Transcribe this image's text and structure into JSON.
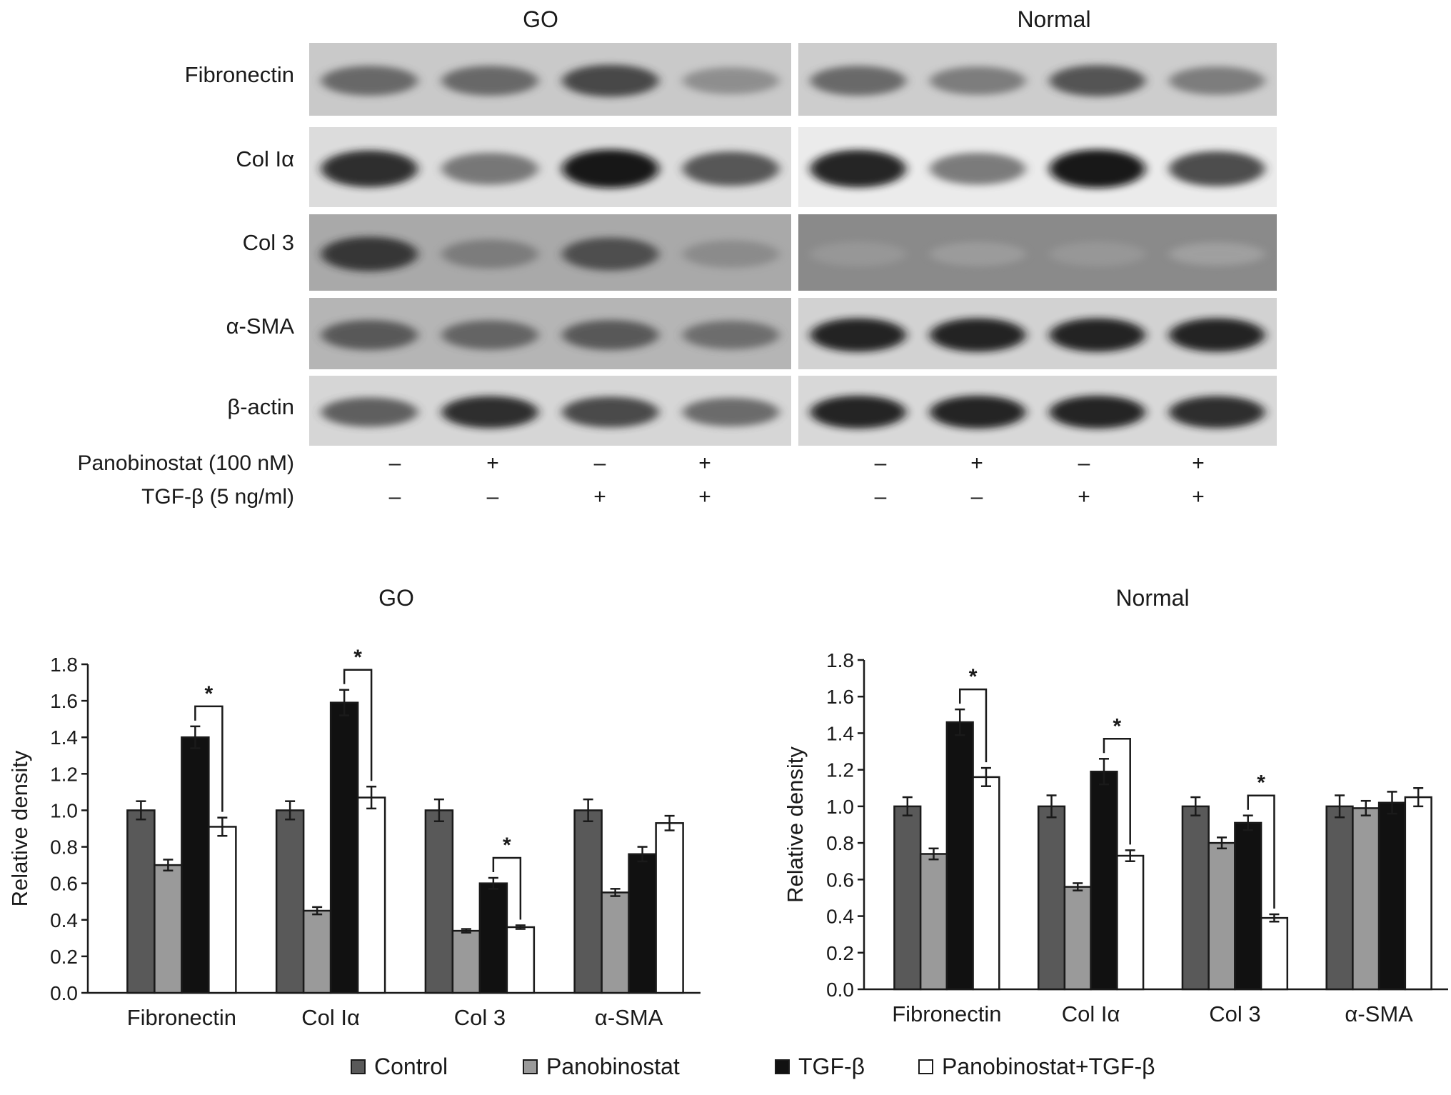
{
  "blot": {
    "groups": [
      "GO",
      "Normal"
    ],
    "rows": [
      "Fibronectin",
      "Col Iα",
      "Col 3",
      "α-SMA",
      "β-actin"
    ],
    "conditions": [
      {
        "label": "Panobinostat (100 nM)",
        "signs": [
          "–",
          "+",
          "–",
          "+"
        ]
      },
      {
        "label": "TGF-β  (5 ng/ml)",
        "signs": [
          "–",
          "–",
          "+",
          "+"
        ]
      }
    ],
    "band_intensity": {
      "GO": [
        [
          0.65,
          0.65,
          0.8,
          0.45
        ],
        [
          0.9,
          0.6,
          1.0,
          0.75
        ],
        [
          0.85,
          0.5,
          0.75,
          0.4
        ],
        [
          0.7,
          0.65,
          0.7,
          0.6
        ],
        [
          0.7,
          0.9,
          0.8,
          0.65
        ]
      ],
      "Normal": [
        [
          0.65,
          0.55,
          0.75,
          0.55
        ],
        [
          0.95,
          0.6,
          1.0,
          0.8
        ],
        [
          0.2,
          0.15,
          0.2,
          0.1
        ],
        [
          0.95,
          0.95,
          0.95,
          0.95
        ],
        [
          0.95,
          0.95,
          0.95,
          0.9
        ]
      ]
    },
    "band_background": {
      "GO": [
        "#c9c9c9",
        "#dcdcdc",
        "#a9a9a9",
        "#b5b5b5",
        "#d6d6d6"
      ],
      "Normal": [
        "#cdcdcd",
        "#ebebeb",
        "#8a8a8a",
        "#d2d2d2",
        "#d8d8d8"
      ]
    }
  },
  "chart_data": [
    {
      "type": "bar",
      "title": "GO",
      "ylabel": "Relative density",
      "ylim": [
        0,
        1.8
      ],
      "yticks": [
        "0.0",
        "0.2",
        "0.4",
        "0.6",
        "0.8",
        "1.0",
        "1.2",
        "1.4",
        "1.6",
        "1.8"
      ],
      "categories": [
        "Fibronectin",
        "Col Iα",
        "Col 3",
        "α-SMA"
      ],
      "series": [
        {
          "name": "Control",
          "values": [
            1.0,
            1.0,
            1.0,
            1.0
          ],
          "errors": [
            0.05,
            0.05,
            0.06,
            0.06
          ]
        },
        {
          "name": "Panobinostat",
          "values": [
            0.7,
            0.45,
            0.34,
            0.55
          ],
          "errors": [
            0.03,
            0.02,
            0.01,
            0.02
          ]
        },
        {
          "name": "TGF-β",
          "values": [
            1.4,
            1.59,
            0.6,
            0.76
          ],
          "errors": [
            0.06,
            0.07,
            0.03,
            0.04
          ]
        },
        {
          "name": "Panobinostat+TGF-β",
          "values": [
            0.91,
            1.07,
            0.36,
            0.93
          ],
          "errors": [
            0.05,
            0.06,
            0.01,
            0.04
          ]
        }
      ],
      "significance": [
        {
          "category": 0,
          "from": 2,
          "to": 3,
          "label": "*"
        },
        {
          "category": 1,
          "from": 2,
          "to": 3,
          "label": "*"
        },
        {
          "category": 2,
          "from": 2,
          "to": 3,
          "label": "*"
        }
      ]
    },
    {
      "type": "bar",
      "title": "Normal",
      "ylabel": "Relative density",
      "ylim": [
        0,
        1.8
      ],
      "yticks": [
        "0.0",
        "0.2",
        "0.4",
        "0.6",
        "0.8",
        "1.0",
        "1.2",
        "1.4",
        "1.6",
        "1.8"
      ],
      "categories": [
        "Fibronectin",
        "Col Iα",
        "Col 3",
        "α-SMA"
      ],
      "series": [
        {
          "name": "Control",
          "values": [
            1.0,
            1.0,
            1.0,
            1.0
          ],
          "errors": [
            0.05,
            0.06,
            0.05,
            0.06
          ]
        },
        {
          "name": "Panobinostat",
          "values": [
            0.74,
            0.56,
            0.8,
            0.99
          ],
          "errors": [
            0.03,
            0.02,
            0.03,
            0.04
          ]
        },
        {
          "name": "TGF-β",
          "values": [
            1.46,
            1.19,
            0.91,
            1.02
          ],
          "errors": [
            0.07,
            0.07,
            0.04,
            0.06
          ]
        },
        {
          "name": "Panobinostat+TGF-β",
          "values": [
            1.16,
            0.73,
            0.39,
            1.05
          ],
          "errors": [
            0.05,
            0.03,
            0.02,
            0.05
          ]
        }
      ],
      "significance": [
        {
          "category": 0,
          "from": 2,
          "to": 3,
          "label": "*"
        },
        {
          "category": 1,
          "from": 2,
          "to": 3,
          "label": "*"
        },
        {
          "category": 2,
          "from": 2,
          "to": 3,
          "label": "*"
        }
      ]
    }
  ],
  "legend": [
    {
      "label": "Control",
      "color": "#595959"
    },
    {
      "label": "Panobinostat",
      "color": "#9a9a9a"
    },
    {
      "label": "TGF-β",
      "color": "#111111"
    },
    {
      "label": "Panobinostat+TGF-β",
      "color": "#ffffff"
    }
  ]
}
